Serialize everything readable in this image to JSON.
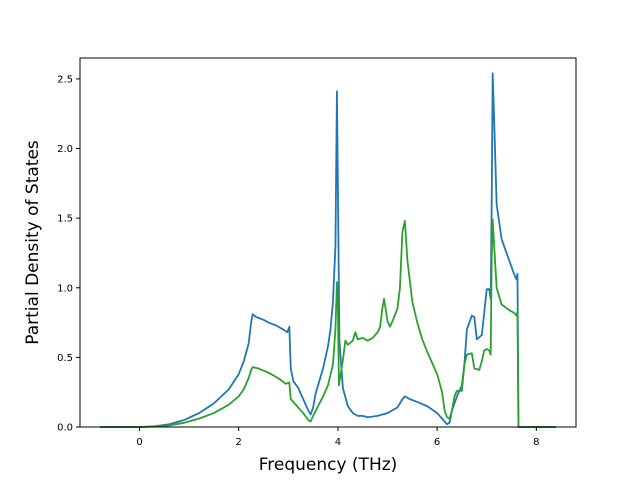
{
  "chart_data": {
    "type": "line",
    "title": "",
    "xlabel": "Frequency (THz)",
    "ylabel": "Partial Density of States",
    "xlim": [
      -1.2,
      8.8
    ],
    "ylim": [
      0.0,
      2.65
    ],
    "xticks": [
      0,
      2,
      4,
      6,
      8
    ],
    "yticks": [
      0.0,
      0.5,
      1.0,
      1.5,
      2.0,
      2.5
    ],
    "xtick_labels": [
      "0",
      "2",
      "4",
      "6",
      "8"
    ],
    "ytick_labels": [
      "0.0",
      "0.5",
      "1.0",
      "1.5",
      "2.0",
      "2.5"
    ],
    "grid": false,
    "legend": "none",
    "series": [
      {
        "color": "#1f77b4",
        "points": [
          [
            -0.8,
            0.0
          ],
          [
            0.0,
            0.0
          ],
          [
            0.3,
            0.005
          ],
          [
            0.6,
            0.02
          ],
          [
            0.9,
            0.05
          ],
          [
            1.2,
            0.1
          ],
          [
            1.5,
            0.17
          ],
          [
            1.8,
            0.27
          ],
          [
            2.0,
            0.38
          ],
          [
            2.1,
            0.47
          ],
          [
            2.2,
            0.6
          ],
          [
            2.25,
            0.75
          ],
          [
            2.28,
            0.81
          ],
          [
            2.35,
            0.79
          ],
          [
            2.5,
            0.77
          ],
          [
            2.6,
            0.75
          ],
          [
            2.75,
            0.73
          ],
          [
            2.9,
            0.7
          ],
          [
            2.98,
            0.68
          ],
          [
            3.02,
            0.72
          ],
          [
            3.05,
            0.42
          ],
          [
            3.1,
            0.33
          ],
          [
            3.2,
            0.28
          ],
          [
            3.3,
            0.2
          ],
          [
            3.4,
            0.12
          ],
          [
            3.45,
            0.09
          ],
          [
            3.5,
            0.14
          ],
          [
            3.55,
            0.24
          ],
          [
            3.6,
            0.3
          ],
          [
            3.7,
            0.42
          ],
          [
            3.8,
            0.58
          ],
          [
            3.85,
            0.7
          ],
          [
            3.9,
            0.9
          ],
          [
            3.95,
            1.3
          ],
          [
            3.98,
            2.41
          ],
          [
            4.0,
            1.7
          ],
          [
            4.03,
            0.62
          ],
          [
            4.1,
            0.28
          ],
          [
            4.2,
            0.15
          ],
          [
            4.3,
            0.1
          ],
          [
            4.4,
            0.08
          ],
          [
            4.5,
            0.08
          ],
          [
            4.6,
            0.07
          ],
          [
            4.8,
            0.08
          ],
          [
            5.0,
            0.1
          ],
          [
            5.2,
            0.14
          ],
          [
            5.3,
            0.2
          ],
          [
            5.35,
            0.22
          ],
          [
            5.45,
            0.2
          ],
          [
            5.6,
            0.18
          ],
          [
            5.8,
            0.15
          ],
          [
            6.0,
            0.1
          ],
          [
            6.1,
            0.06
          ],
          [
            6.2,
            0.02
          ],
          [
            6.25,
            0.03
          ],
          [
            6.3,
            0.12
          ],
          [
            6.4,
            0.22
          ],
          [
            6.5,
            0.3
          ],
          [
            6.55,
            0.45
          ],
          [
            6.6,
            0.7
          ],
          [
            6.7,
            0.8
          ],
          [
            6.75,
            0.79
          ],
          [
            6.8,
            0.63
          ],
          [
            6.9,
            0.66
          ],
          [
            6.95,
            0.82
          ],
          [
            7.0,
            0.99
          ],
          [
            7.05,
            0.99
          ],
          [
            7.08,
            0.92
          ],
          [
            7.1,
            1.6
          ],
          [
            7.12,
            2.54
          ],
          [
            7.15,
            2.2
          ],
          [
            7.2,
            1.6
          ],
          [
            7.3,
            1.35
          ],
          [
            7.45,
            1.2
          ],
          [
            7.55,
            1.1
          ],
          [
            7.6,
            1.06
          ],
          [
            7.62,
            1.1
          ],
          [
            7.64,
            0.0
          ],
          [
            8.4,
            0.0
          ]
        ]
      },
      {
        "color": "#2ca02c",
        "points": [
          [
            -0.8,
            0.0
          ],
          [
            0.0,
            0.0
          ],
          [
            0.3,
            0.003
          ],
          [
            0.6,
            0.012
          ],
          [
            0.9,
            0.03
          ],
          [
            1.2,
            0.06
          ],
          [
            1.5,
            0.1
          ],
          [
            1.8,
            0.16
          ],
          [
            2.0,
            0.22
          ],
          [
            2.1,
            0.27
          ],
          [
            2.2,
            0.35
          ],
          [
            2.25,
            0.41
          ],
          [
            2.28,
            0.43
          ],
          [
            2.4,
            0.42
          ],
          [
            2.6,
            0.39
          ],
          [
            2.8,
            0.35
          ],
          [
            2.95,
            0.31
          ],
          [
            3.02,
            0.32
          ],
          [
            3.05,
            0.2
          ],
          [
            3.15,
            0.16
          ],
          [
            3.3,
            0.1
          ],
          [
            3.4,
            0.05
          ],
          [
            3.45,
            0.04
          ],
          [
            3.5,
            0.08
          ],
          [
            3.6,
            0.15
          ],
          [
            3.7,
            0.22
          ],
          [
            3.8,
            0.3
          ],
          [
            3.9,
            0.45
          ],
          [
            3.95,
            0.7
          ],
          [
            3.98,
            1.04
          ],
          [
            4.0,
            0.85
          ],
          [
            4.02,
            0.3
          ],
          [
            4.1,
            0.48
          ],
          [
            4.15,
            0.62
          ],
          [
            4.2,
            0.59
          ],
          [
            4.3,
            0.62
          ],
          [
            4.35,
            0.68
          ],
          [
            4.4,
            0.63
          ],
          [
            4.5,
            0.64
          ],
          [
            4.6,
            0.62
          ],
          [
            4.7,
            0.64
          ],
          [
            4.8,
            0.68
          ],
          [
            4.85,
            0.72
          ],
          [
            4.9,
            0.86
          ],
          [
            4.93,
            0.92
          ],
          [
            5.0,
            0.76
          ],
          [
            5.05,
            0.72
          ],
          [
            5.1,
            0.76
          ],
          [
            5.2,
            0.85
          ],
          [
            5.25,
            1.0
          ],
          [
            5.3,
            1.4
          ],
          [
            5.35,
            1.48
          ],
          [
            5.4,
            1.2
          ],
          [
            5.5,
            0.9
          ],
          [
            5.6,
            0.75
          ],
          [
            5.7,
            0.63
          ],
          [
            5.8,
            0.54
          ],
          [
            6.0,
            0.38
          ],
          [
            6.1,
            0.25
          ],
          [
            6.15,
            0.12
          ],
          [
            6.2,
            0.07
          ],
          [
            6.25,
            0.06
          ],
          [
            6.3,
            0.12
          ],
          [
            6.35,
            0.22
          ],
          [
            6.4,
            0.26
          ],
          [
            6.5,
            0.26
          ],
          [
            6.55,
            0.45
          ],
          [
            6.6,
            0.52
          ],
          [
            6.7,
            0.53
          ],
          [
            6.75,
            0.42
          ],
          [
            6.85,
            0.41
          ],
          [
            6.9,
            0.47
          ],
          [
            6.95,
            0.55
          ],
          [
            7.0,
            0.56
          ],
          [
            7.05,
            0.55
          ],
          [
            7.08,
            0.52
          ],
          [
            7.1,
            1.2
          ],
          [
            7.12,
            1.49
          ],
          [
            7.15,
            1.3
          ],
          [
            7.2,
            1.0
          ],
          [
            7.3,
            0.88
          ],
          [
            7.45,
            0.84
          ],
          [
            7.55,
            0.82
          ],
          [
            7.6,
            0.8
          ],
          [
            7.62,
            0.83
          ],
          [
            7.64,
            0.0
          ],
          [
            8.4,
            0.0
          ]
        ]
      }
    ]
  }
}
